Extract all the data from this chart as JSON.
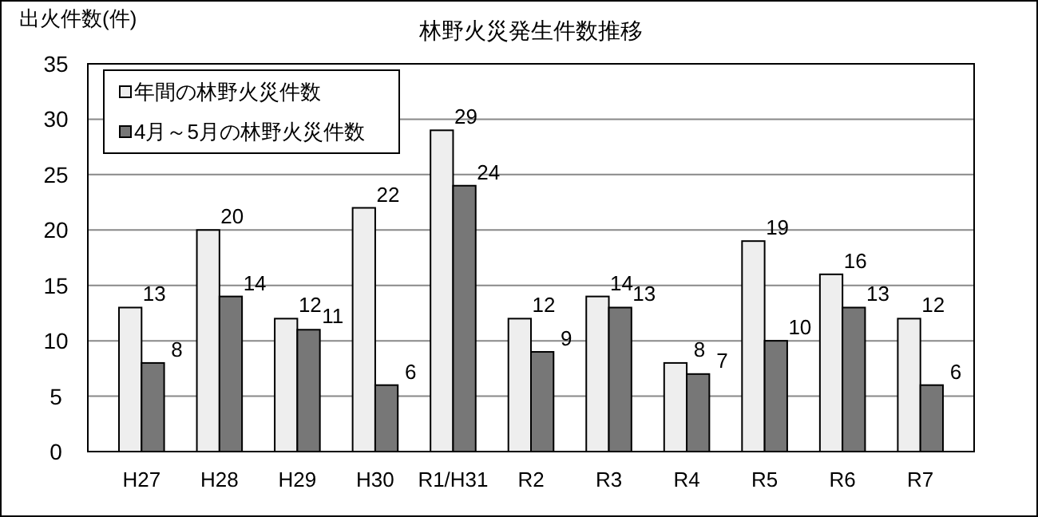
{
  "chart_data": {
    "type": "bar",
    "title": "林野火災発生件数推移",
    "ylabel": "出火件数(件)",
    "categories": [
      "H27",
      "H28",
      "H29",
      "H30",
      "R1/H31",
      "R2",
      "R3",
      "R4",
      "R5",
      "R6",
      "R7"
    ],
    "series": [
      {
        "name": "年間の林野火災件数",
        "color": "#eeeeee",
        "values": [
          13,
          20,
          12,
          22,
          29,
          12,
          14,
          8,
          19,
          16,
          12
        ]
      },
      {
        "name": "4月～5月の林野火災件数",
        "color": "#777777",
        "values": [
          8,
          14,
          11,
          6,
          24,
          9,
          13,
          7,
          10,
          13,
          6
        ]
      }
    ],
    "ylim": [
      0,
      35
    ],
    "yticks": [
      0,
      5,
      10,
      15,
      20,
      25,
      30,
      35
    ],
    "grid": "y",
    "legend": "top left",
    "data_labels": true
  }
}
